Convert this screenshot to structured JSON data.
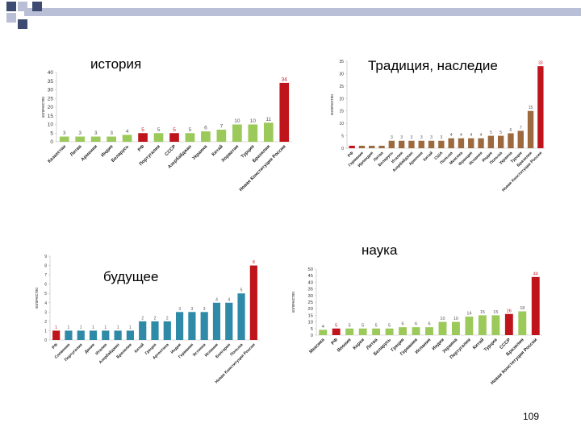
{
  "page_number": "109",
  "colors": {
    "green": "#9bc95a",
    "red": "#c0141c",
    "brown": "#9c6a3e",
    "teal": "#2e8aa6",
    "header_dark": "#3d4a72",
    "header_light": "#b9bfd6"
  },
  "chart_data": [
    {
      "id": "history",
      "type": "bar",
      "title": "история",
      "ylabel": "количество",
      "ylim": [
        0,
        40
      ],
      "yticks": [
        0,
        5,
        10,
        15,
        20,
        25,
        30,
        35,
        40
      ],
      "categories": [
        "Казахстан",
        "Литва",
        "Армения",
        "Индия",
        "Беларусь",
        "РФ",
        "Португалия",
        "СССР",
        "Азербайджан",
        "Украина",
        "Китай",
        "Хорватия",
        "Турция",
        "Бразилия",
        "Новая Конституция России"
      ],
      "values": [
        3,
        3,
        3,
        3,
        4,
        5,
        5,
        5,
        5,
        6,
        7,
        10,
        10,
        11,
        34
      ],
      "bar_colors": [
        "green",
        "green",
        "green",
        "green",
        "green",
        "red",
        "green",
        "red",
        "green",
        "green",
        "green",
        "green",
        "green",
        "green",
        "red"
      ]
    },
    {
      "id": "tradition",
      "type": "bar",
      "title": "Традиция, наследие",
      "ylabel": "количество",
      "ylim": [
        0,
        35
      ],
      "yticks": [
        0,
        5,
        10,
        15,
        20,
        25,
        30,
        35
      ],
      "categories": [
        "РФ",
        "Германия",
        "Ирландия",
        "Литва",
        "Беларусь",
        "Италия",
        "Азербайджан",
        "Армения",
        "Китай",
        "США",
        "Польша",
        "Мексика",
        "Франция",
        "Испания",
        "Индия",
        "Польша",
        "Украина",
        "Турция",
        "Бразилия",
        "Новая Конституция России"
      ],
      "values": [
        1,
        1,
        1,
        1,
        3,
        3,
        3,
        3,
        3,
        3,
        4,
        4,
        4,
        4,
        5,
        5,
        6,
        7,
        15,
        33
      ],
      "value_labels": [
        "",
        "",
        "",
        "",
        "3",
        "3",
        "3",
        "3",
        "3",
        "3",
        "4",
        "4",
        "4",
        "4",
        "5",
        "5",
        "6",
        "7",
        "15",
        "33"
      ],
      "bar_colors": [
        "red",
        "brown",
        "brown",
        "brown",
        "brown",
        "brown",
        "brown",
        "brown",
        "brown",
        "brown",
        "brown",
        "brown",
        "brown",
        "brown",
        "brown",
        "brown",
        "brown",
        "brown",
        "brown",
        "red"
      ]
    },
    {
      "id": "future",
      "type": "bar",
      "title": "будущее",
      "ylabel": "количество",
      "ylim": [
        0,
        9
      ],
      "yticks": [
        0,
        1,
        2,
        3,
        4,
        5,
        6,
        7,
        8,
        9
      ],
      "categories": [
        "РФ",
        "Словения",
        "Португалия",
        "Дания",
        "Италия",
        "Азербайджан",
        "Бразилия",
        "Китай",
        "Греция",
        "Аргентина",
        "Индия",
        "Германия",
        "Эстония",
        "Испания",
        "Болгария",
        "Польша",
        "Новая Конституция России"
      ],
      "values": [
        1,
        1,
        1,
        1,
        1,
        1,
        1,
        2,
        2,
        2,
        3,
        3,
        3,
        4,
        4,
        5,
        8
      ],
      "value_labels": [
        "1",
        "1",
        "1",
        "1",
        "1",
        "1",
        "1",
        "2",
        "2",
        "2",
        "3",
        "3",
        "3",
        "4",
        "4",
        "5",
        "8"
      ],
      "bar_colors": [
        "red",
        "teal",
        "teal",
        "teal",
        "teal",
        "teal",
        "teal",
        "teal",
        "teal",
        "teal",
        "teal",
        "teal",
        "teal",
        "teal",
        "teal",
        "teal",
        "red"
      ]
    },
    {
      "id": "science",
      "type": "bar",
      "title": "наука",
      "ylabel": "количество",
      "ylim": [
        0,
        50
      ],
      "yticks": [
        0,
        5,
        10,
        15,
        20,
        25,
        30,
        35,
        40,
        45,
        50
      ],
      "categories": [
        "Мексика",
        "РФ",
        "Япония",
        "Корея",
        "Литва",
        "Беларусь",
        "Греция",
        "Германия",
        "Испания",
        "Индия",
        "Украина",
        "Португалия",
        "Китай",
        "Турция",
        "СССР",
        "Бразилия",
        "Новая Конституция России"
      ],
      "values": [
        4,
        5,
        5,
        5,
        5,
        5,
        6,
        6,
        6,
        10,
        10,
        14,
        15,
        15,
        16,
        18,
        44
      ],
      "bar_colors": [
        "green",
        "red",
        "green",
        "green",
        "green",
        "green",
        "green",
        "green",
        "green",
        "green",
        "green",
        "green",
        "green",
        "green",
        "red",
        "green",
        "red"
      ]
    }
  ]
}
